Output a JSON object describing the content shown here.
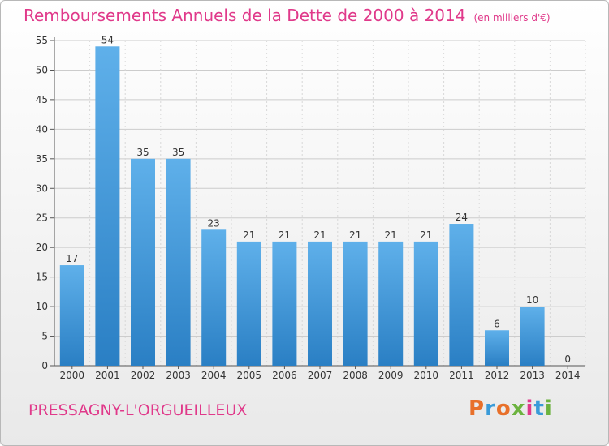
{
  "title": "Remboursements Annuels de la Dette de 2000 à 2014",
  "subtitle": "(en milliers d'€)",
  "commune": "PRESSAGNY-L'ORGUEILLEUX",
  "logo": {
    "text": "Proxiti",
    "colors": [
      "#e8702a",
      "#3a9bd9",
      "#e8702a",
      "#6cb33f",
      "#e0398a",
      "#3a9bd9",
      "#6cb33f"
    ]
  },
  "colors": {
    "bar_top": "#5fb0ea",
    "bar_bottom": "#2a7fc4",
    "title": "#e0398a",
    "grid": "#cccccc"
  },
  "chart_data": {
    "type": "bar",
    "title": "Remboursements Annuels de la Dette de 2000 à 2014",
    "subtitle": "(en milliers d'€)",
    "categories": [
      "2000",
      "2001",
      "2002",
      "2003",
      "2004",
      "2005",
      "2006",
      "2007",
      "2008",
      "2009",
      "2010",
      "2011",
      "2012",
      "2013",
      "2014"
    ],
    "values": [
      17,
      54,
      35,
      35,
      23,
      21,
      21,
      21,
      21,
      21,
      21,
      24,
      6,
      10,
      0
    ],
    "xlabel": "",
    "ylabel": "",
    "ylim": [
      0,
      55
    ],
    "yticks": [
      0,
      5,
      10,
      15,
      20,
      25,
      30,
      35,
      40,
      45,
      50,
      55
    ],
    "grid": true,
    "legend": "none"
  }
}
